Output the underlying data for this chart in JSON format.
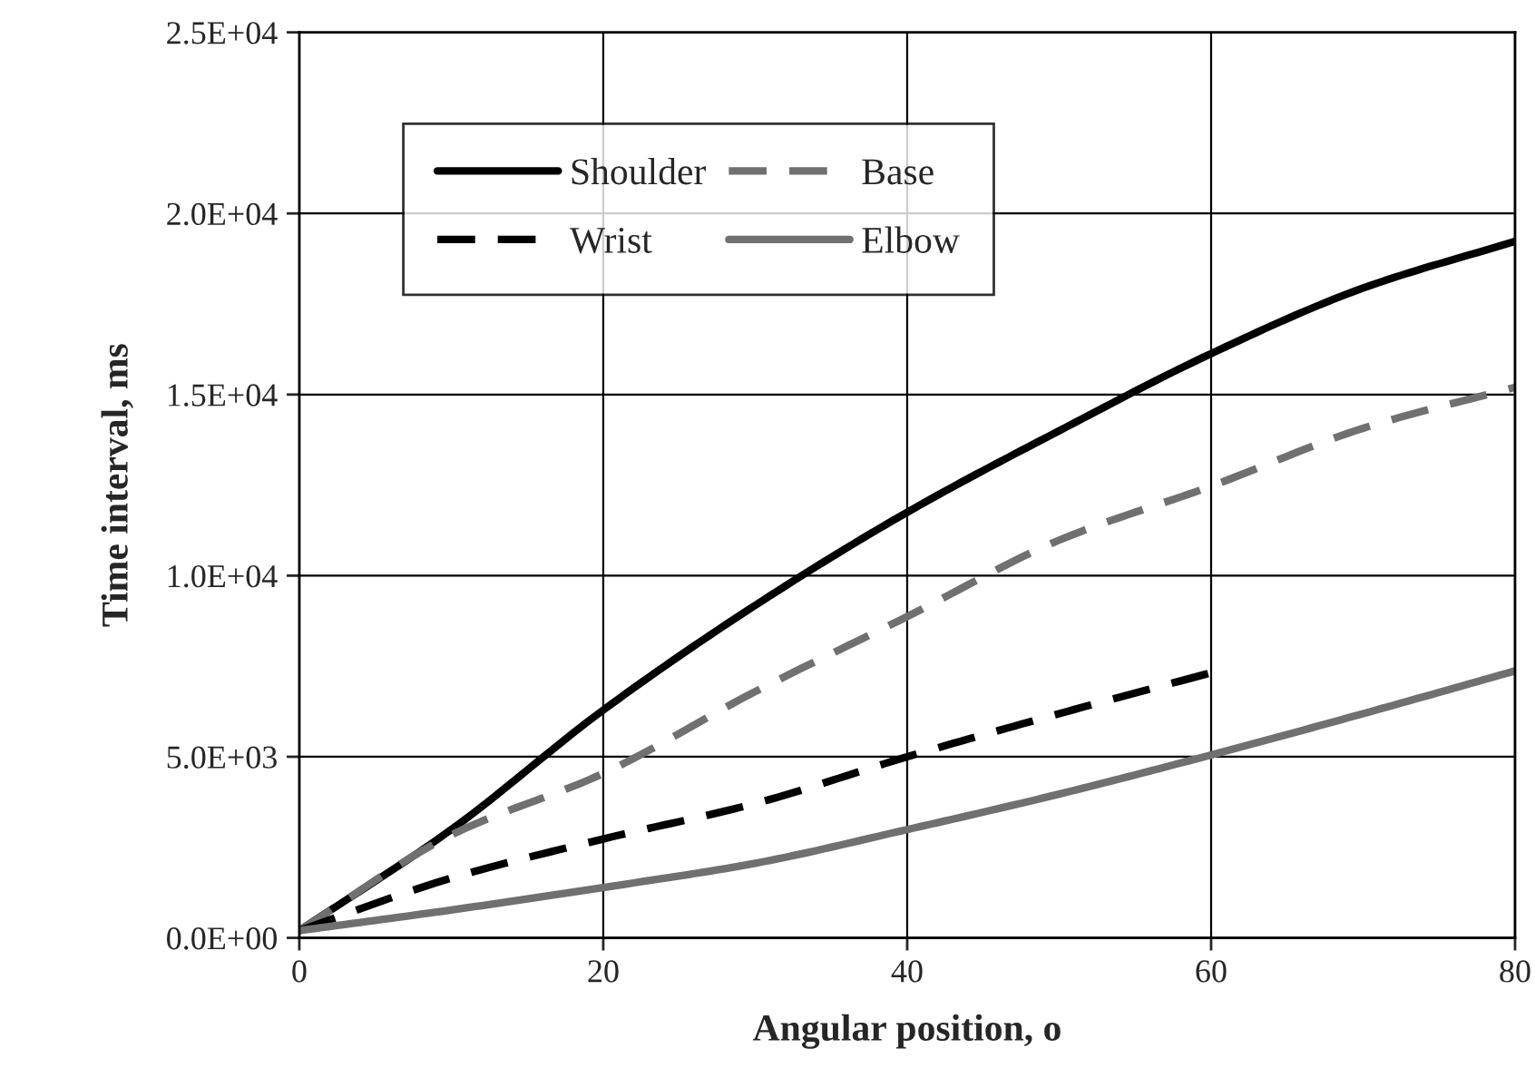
{
  "chart_data": {
    "type": "line",
    "xlabel": "Angular position, o",
    "ylabel": "Time interval, ms",
    "x": [
      0,
      10,
      20,
      30,
      40,
      50,
      60,
      70,
      80
    ],
    "series": [
      {
        "name": "Shoulder",
        "color": "#000000",
        "line_style": "solid",
        "values": [
          200,
          2990,
          6290,
          9180,
          11750,
          14000,
          16130,
          17940,
          19230
        ]
      },
      {
        "name": "Base",
        "color": "#707070",
        "line_style": "dashed",
        "values": [
          200,
          2840,
          4540,
          6800,
          8870,
          10980,
          12470,
          14070,
          15200
        ]
      },
      {
        "name": "Wrist",
        "color": "#000000",
        "line_style": "dashed",
        "values": [
          200,
          1650,
          2730,
          3710,
          5000,
          6190,
          7320,
          null,
          null
        ]
      },
      {
        "name": "Elbow",
        "color": "#707070",
        "line_style": "solid",
        "values": [
          200,
          770,
          1390,
          2060,
          2990,
          3970,
          5050,
          6190,
          7370
        ]
      }
    ],
    "xlim": [
      0,
      80
    ],
    "xticks": [
      0,
      20,
      40,
      60,
      80
    ],
    "ylim": [
      0,
      25000
    ],
    "yticks": [
      {
        "value": 0,
        "label": "0.0E+00"
      },
      {
        "value": 5000,
        "label": "5.0E+03"
      },
      {
        "value": 10000,
        "label": "1.0E+04"
      },
      {
        "value": 15000,
        "label": "1.5E+04"
      },
      {
        "value": 20000,
        "label": "2.0E+04"
      },
      {
        "value": 25000,
        "label": "2.5E+04"
      }
    ],
    "grid": true,
    "legend": "top left"
  }
}
